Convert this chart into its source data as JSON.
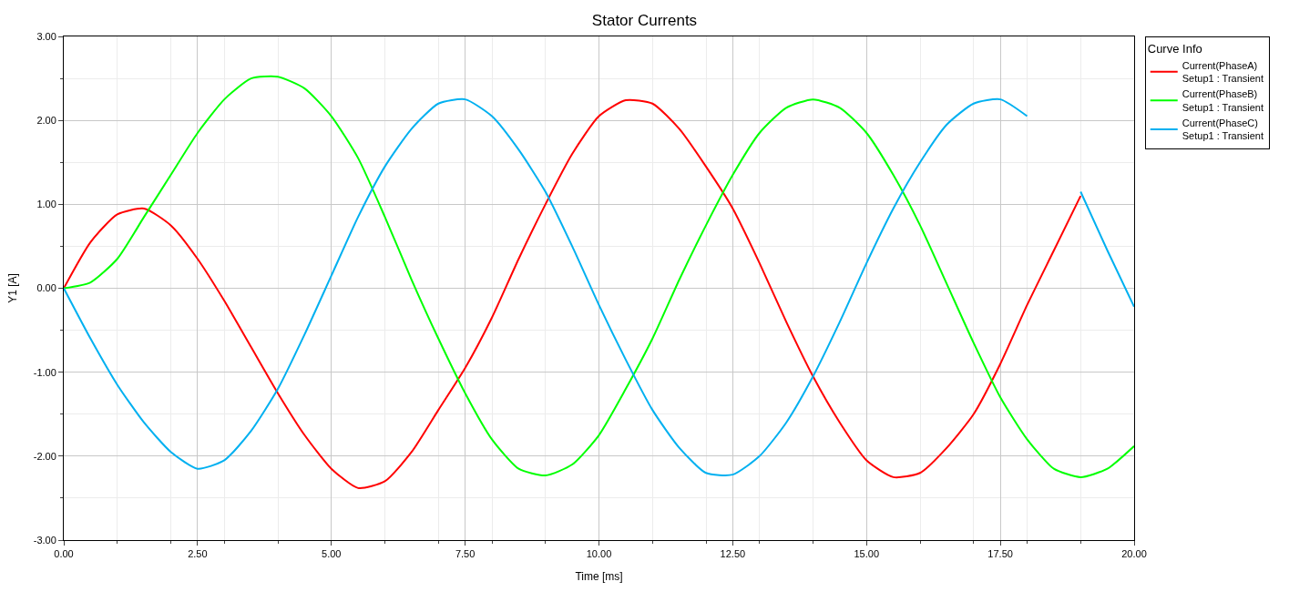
{
  "chart_data": {
    "type": "line",
    "title": "Stator Currents",
    "xlabel": "Time [ms]",
    "ylabel": "Y1 [A]",
    "legend_title": "Curve Info",
    "x": [
      0,
      0.5,
      1,
      1.5,
      2,
      2.5,
      3,
      3.5,
      4,
      4.5,
      5,
      5.5,
      6,
      6.5,
      7,
      7.5,
      8,
      8.5,
      9,
      9.5,
      10,
      10.5,
      11,
      11.5,
      12,
      12.5,
      13,
      13.5,
      14,
      14.5,
      15,
      15.5,
      16,
      16.5,
      17,
      17.5,
      18,
      18.5,
      19,
      19.5,
      20
    ],
    "series": [
      {
        "name": "Current(PhaseA)\nSetup1 : Transient",
        "color": "#ff0000",
        "values": [
          0,
          0.55,
          0.88,
          0.95,
          0.75,
          0.35,
          -0.15,
          -0.7,
          -1.25,
          -1.75,
          -2.15,
          -2.38,
          -2.3,
          -1.95,
          -1.45,
          -0.95,
          -0.35,
          0.35,
          1.0,
          1.6,
          2.05,
          2.24,
          2.2,
          1.9,
          1.45,
          0.95,
          0.3,
          -0.4,
          -1.05,
          -1.6,
          -2.05,
          -2.25,
          -2.2,
          -1.9,
          -1.5,
          -0.9,
          -0.2,
          0.45,
          1.1,
          null,
          null
        ]
      },
      {
        "name": "Current(PhaseB)\nSetup1 : Transient",
        "color": "#00ff00",
        "values": [
          0,
          0.07,
          0.35,
          0.85,
          1.35,
          1.85,
          2.25,
          2.5,
          2.52,
          2.38,
          2.05,
          1.55,
          0.85,
          0.1,
          -0.6,
          -1.25,
          -1.8,
          -2.15,
          -2.23,
          -2.1,
          -1.75,
          -1.2,
          -0.6,
          0.1,
          0.75,
          1.35,
          1.85,
          2.15,
          2.25,
          2.15,
          1.85,
          1.35,
          0.75,
          0.05,
          -0.65,
          -1.3,
          -1.8,
          -2.15,
          -2.25,
          -2.15,
          -1.88
        ]
      },
      {
        "name": "Current(PhaseC)\nSetup1 : Transient",
        "color": "#00b0f0",
        "values": [
          0,
          -0.6,
          -1.15,
          -1.6,
          -1.95,
          -2.15,
          -2.05,
          -1.7,
          -1.2,
          -0.55,
          0.15,
          0.85,
          1.45,
          1.9,
          2.2,
          2.25,
          2.05,
          1.65,
          1.15,
          0.5,
          -0.2,
          -0.85,
          -1.45,
          -1.9,
          -2.2,
          -2.22,
          -2.0,
          -1.6,
          -1.05,
          -0.4,
          0.3,
          0.95,
          1.5,
          1.95,
          2.2,
          2.25,
          2.05,
          null,
          1.15,
          0.45,
          -0.22
        ]
      }
    ],
    "xlim": [
      0,
      20
    ],
    "ylim": [
      -3,
      3
    ],
    "xticks": [
      {
        "value": 0,
        "label": "0.00"
      },
      {
        "value": 2.5,
        "label": "2.50"
      },
      {
        "value": 5,
        "label": "5.00"
      },
      {
        "value": 7.5,
        "label": "7.50"
      },
      {
        "value": 10,
        "label": "10.00"
      },
      {
        "value": 12.5,
        "label": "12.50"
      },
      {
        "value": 15,
        "label": "15.00"
      },
      {
        "value": 17.5,
        "label": "17.50"
      },
      {
        "value": 20,
        "label": "20.00"
      }
    ],
    "yticks": [
      {
        "value": -3,
        "label": "-3.00"
      },
      {
        "value": -2,
        "label": "-2.00"
      },
      {
        "value": -1,
        "label": "-1.00"
      },
      {
        "value": 0,
        "label": "0.00"
      },
      {
        "value": 1,
        "label": "1.00"
      },
      {
        "value": 2,
        "label": "2.00"
      },
      {
        "value": 3,
        "label": "3.00"
      }
    ],
    "grid": true,
    "legend": "top right",
    "marker": "none",
    "line_style": "solid"
  }
}
